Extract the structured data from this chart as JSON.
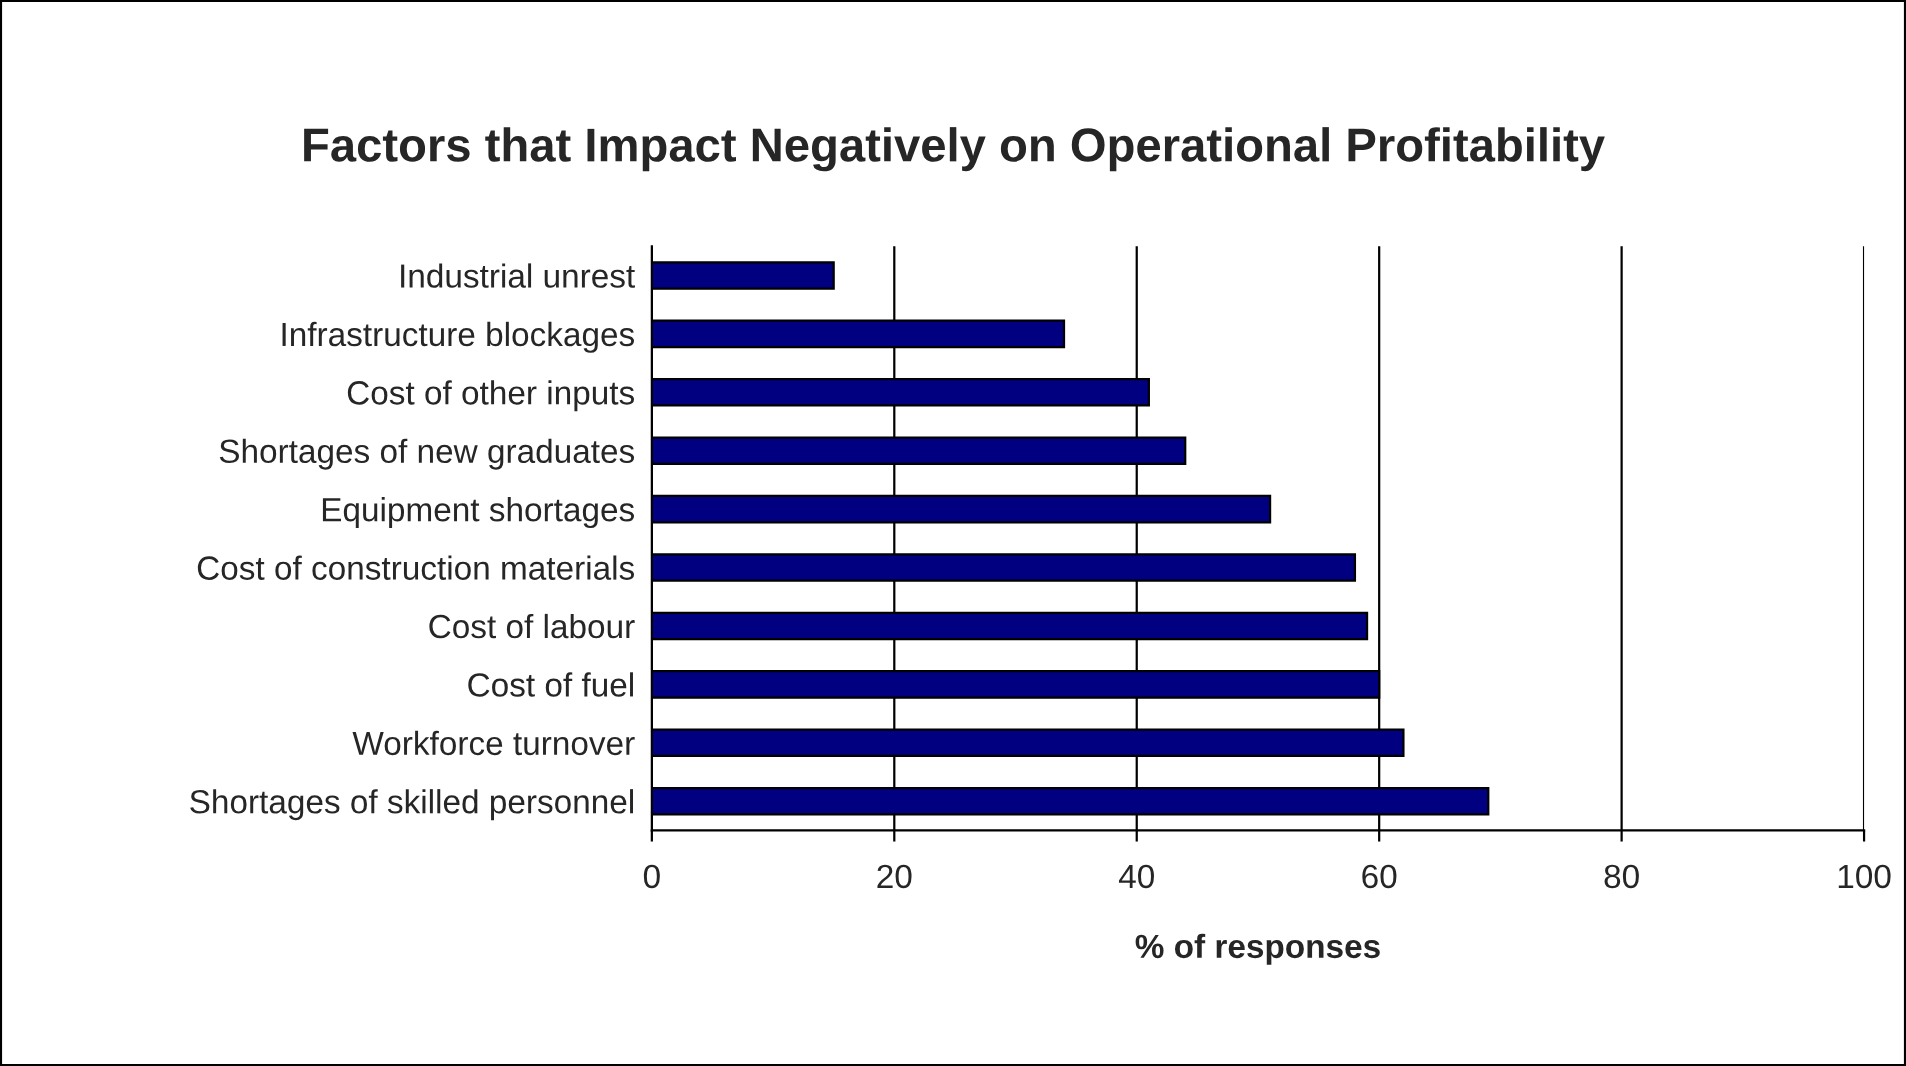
{
  "chart_data": {
    "type": "bar",
    "orientation": "horizontal",
    "title": "Factors that Impact Negatively on Operational Profitability",
    "xlabel": "% of responses",
    "categories": [
      "Industrial unrest",
      "Infrastructure blockages",
      "Cost of other inputs",
      "Shortages of new graduates",
      "Equipment shortages",
      "Cost of construction materials",
      "Cost of labour",
      "Cost of fuel",
      "Workforce turnover",
      "Shortages of skilled personnel"
    ],
    "values": [
      15,
      34,
      41,
      44,
      51,
      58,
      59,
      60,
      62,
      69
    ],
    "color": "#000080",
    "xlim": [
      0,
      100
    ],
    "xticks": [
      0,
      20,
      40,
      60,
      80,
      100
    ],
    "grid": "x"
  }
}
